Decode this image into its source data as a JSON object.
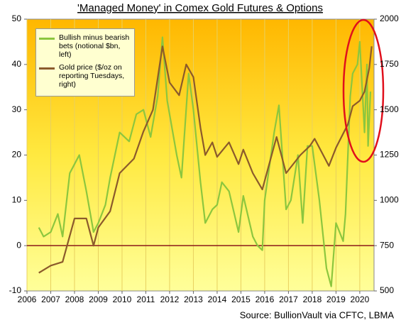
{
  "chart_data": {
    "type": "line",
    "title": "'Managed Money' in Comex Gold Futures & Options",
    "source": "Source: BullionVault via CFTC, LBMA",
    "xlim": [
      2006,
      2020.6
    ],
    "xticks": [
      2006,
      2007,
      2008,
      2009,
      2010,
      2011,
      2012,
      2013,
      2014,
      2015,
      2016,
      2017,
      2018,
      2019,
      2020
    ],
    "ylim": [
      -10,
      50
    ],
    "yticks": [
      -10,
      0,
      10,
      20,
      30,
      40,
      50
    ],
    "y2lim": [
      500,
      2000
    ],
    "y2ticks": [
      500,
      750,
      1000,
      1250,
      1500,
      1750,
      2000
    ],
    "grid": "x",
    "legend": "top-left",
    "reference_line": {
      "value": 0,
      "color": "#8b1a1a"
    },
    "series": [
      {
        "name": "Bullish minus bearish bets (notional $bn, left)",
        "color": "#8cc63e",
        "x": [
          2006.5,
          2006.7,
          2007,
          2007.3,
          2007.5,
          2007.8,
          2008,
          2008.2,
          2008.5,
          2008.8,
          2009,
          2009.3,
          2009.5,
          2009.9,
          2010.3,
          2010.6,
          2010.9,
          2011.2,
          2011.5,
          2011.7,
          2011.9,
          2012.3,
          2012.5,
          2012.8,
          2013,
          2013.3,
          2013.5,
          2013.8,
          2014,
          2014.2,
          2014.5,
          2014.9,
          2015.1,
          2015.5,
          2015.7,
          2015.9,
          2016,
          2016.4,
          2016.6,
          2016.9,
          2017.1,
          2017.4,
          2017.6,
          2017.8,
          2018,
          2018.3,
          2018.6,
          2018.8,
          2019,
          2019.3,
          2019.4,
          2019.6,
          2019.7,
          2019.9,
          2020,
          2020.2,
          2020.3,
          2020.35,
          2020.45
        ],
        "values": [
          4,
          2,
          3,
          7,
          2,
          16,
          18,
          20,
          12,
          3,
          5,
          9,
          15,
          25,
          23,
          29,
          30,
          24,
          33,
          46,
          32,
          20,
          15,
          38,
          30,
          14,
          5,
          8,
          9,
          14,
          12,
          3,
          11,
          2,
          0,
          -1,
          10,
          25,
          31,
          8,
          10,
          20,
          5,
          22,
          22,
          10,
          -5,
          -9,
          5,
          1,
          7,
          33,
          38,
          40,
          45,
          25,
          40,
          22,
          34
        ]
      },
      {
        "name": "Gold price ($/oz on reporting Tuesdays, right)",
        "color": "#8b5a2b",
        "axis": "y2",
        "x": [
          2006.5,
          2007,
          2007.5,
          2008,
          2008.5,
          2008.8,
          2009,
          2009.5,
          2009.9,
          2010.5,
          2010.9,
          2011.3,
          2011.7,
          2012,
          2012.4,
          2012.7,
          2013,
          2013.3,
          2013.5,
          2013.8,
          2014,
          2014.5,
          2014.9,
          2015.1,
          2015.5,
          2015.9,
          2016.5,
          2016.9,
          2017.5,
          2017.9,
          2018.1,
          2018.7,
          2019,
          2019.5,
          2019.7,
          2020,
          2020.2,
          2020.4,
          2020.5
        ],
        "values": [
          600,
          640,
          660,
          900,
          900,
          750,
          850,
          940,
          1150,
          1230,
          1380,
          1500,
          1850,
          1650,
          1580,
          1750,
          1680,
          1400,
          1250,
          1320,
          1240,
          1320,
          1200,
          1280,
          1150,
          1060,
          1350,
          1150,
          1250,
          1300,
          1340,
          1190,
          1290,
          1420,
          1520,
          1550,
          1600,
          1730,
          1850
        ]
      }
    ]
  }
}
